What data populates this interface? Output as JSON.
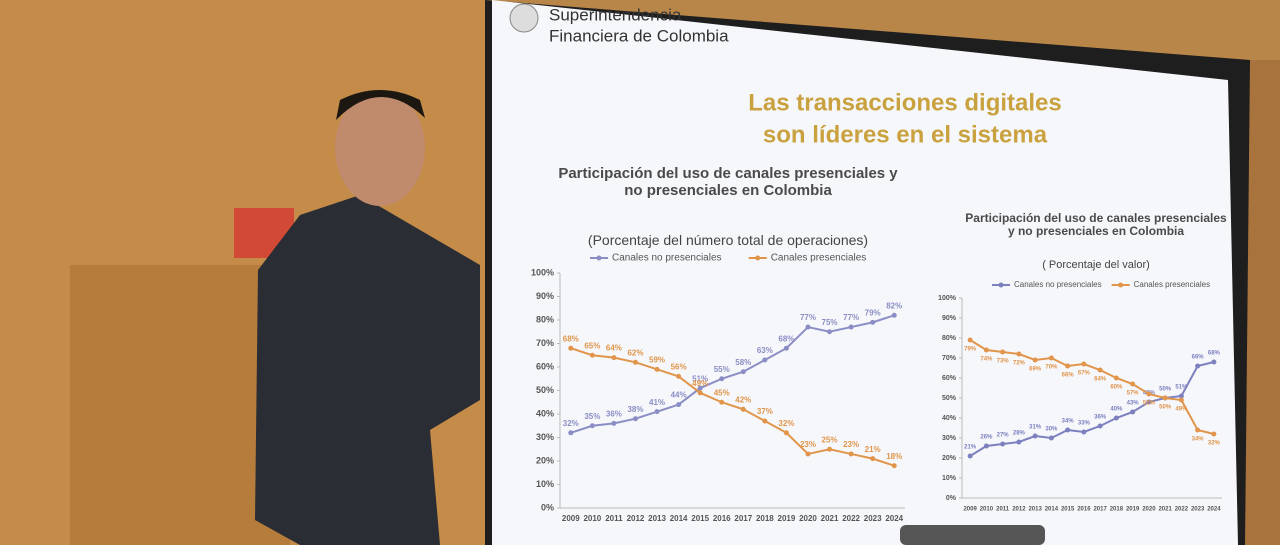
{
  "slide": {
    "logo_line_1": "Superintendencia",
    "logo_line_2": "Financiera de Colombia",
    "heading_line_1": "Las transacciones digitales",
    "heading_line_2": "son líderes en el sistema"
  },
  "chart_data": [
    {
      "type": "line",
      "title": "Participación del uso de canales presenciales y no presenciales en Colombia",
      "subtitle": "(Porcentaje del número total de operaciones)",
      "categories": [
        "2009",
        "2010",
        "2011",
        "2012",
        "2013",
        "2014",
        "2015",
        "2016",
        "2017",
        "2018",
        "2019",
        "2020",
        "2021",
        "2022",
        "2023",
        "2024"
      ],
      "series": [
        {
          "name": "Canales no presenciales",
          "color": "#8b8ec4",
          "values": [
            32,
            35,
            36,
            38,
            41,
            44,
            51,
            55,
            58,
            63,
            68,
            77,
            75,
            77,
            79,
            82
          ],
          "value_labels": [
            "32%",
            "35%",
            "36%",
            "38%",
            "41%",
            "44%",
            "51%",
            "55%",
            "58%",
            "63%",
            "68%",
            "77%",
            "75%",
            "77%",
            "79%",
            "82%"
          ]
        },
        {
          "name": "Canales presenciales",
          "color": "#e0954a",
          "values": [
            68,
            65,
            64,
            62,
            59,
            56,
            49,
            45,
            42,
            37,
            32,
            23,
            25,
            23,
            21,
            18
          ],
          "value_labels": [
            "68%",
            "65%",
            "64%",
            "62%",
            "59%",
            "56%",
            "49%",
            "45%",
            "42%",
            "37%",
            "32%",
            "23%",
            "25%",
            "23%",
            "21%",
            "18%"
          ]
        }
      ],
      "ylim": [
        0,
        100
      ],
      "yticks": [
        {
          "value": 0,
          "label": "0%"
        },
        {
          "value": 10,
          "label": "10%"
        },
        {
          "value": 20,
          "label": "20%"
        },
        {
          "value": 30,
          "label": "30%"
        },
        {
          "value": 40,
          "label": "40%"
        },
        {
          "value": 50,
          "label": "50%"
        },
        {
          "value": 60,
          "label": "60%"
        },
        {
          "value": 70,
          "label": "70%"
        },
        {
          "value": 80,
          "label": "80%"
        },
        {
          "value": 90,
          "label": "90%"
        },
        {
          "value": 100,
          "label": "100%"
        }
      ],
      "legend": "top"
    },
    {
      "type": "line",
      "title": "Participación del uso de canales presenciales y no presenciales en Colombia",
      "subtitle": "( Porcentaje del valor)",
      "categories": [
        "2009",
        "2010",
        "2011",
        "2012",
        "2013",
        "2014",
        "2015",
        "2016",
        "2017",
        "2018",
        "2019",
        "2020",
        "2021",
        "2022",
        "2023",
        "2024"
      ],
      "series": [
        {
          "name": "Canales no presenciales",
          "color": "#7c80bf",
          "values": [
            21,
            26,
            27,
            28,
            31,
            30,
            34,
            33,
            36,
            40,
            43,
            48,
            50,
            51,
            66,
            68
          ],
          "value_labels": [
            "21%",
            "26%",
            "27%",
            "28%",
            "31%",
            "30%",
            "34%",
            "33%",
            "36%",
            "40%",
            "43%",
            "48%",
            "50%",
            "51%",
            "66%",
            "68%"
          ]
        },
        {
          "name": "Canales presenciales",
          "color": "#e0954a",
          "values": [
            79,
            74,
            73,
            72,
            69,
            70,
            66,
            67,
            64,
            60,
            57,
            52,
            50,
            49,
            34,
            32
          ],
          "value_labels": [
            "79%",
            "74%",
            "73%",
            "72%",
            "69%",
            "70%",
            "66%",
            "67%",
            "64%",
            "60%",
            "57%",
            "52%",
            "50%",
            "49%",
            "34%",
            "32%"
          ]
        }
      ],
      "ylim": [
        0,
        100
      ],
      "yticks": [
        {
          "value": 0,
          "label": "0%"
        },
        {
          "value": 10,
          "label": "10%"
        },
        {
          "value": 20,
          "label": "20%"
        },
        {
          "value": 30,
          "label": "30%"
        },
        {
          "value": 40,
          "label": "40%"
        },
        {
          "value": 50,
          "label": "50%"
        },
        {
          "value": 60,
          "label": "60%"
        },
        {
          "value": 70,
          "label": "70%"
        },
        {
          "value": 80,
          "label": "80%"
        },
        {
          "value": 90,
          "label": "90%"
        },
        {
          "value": 100,
          "label": "100%"
        }
      ],
      "legend": "top"
    }
  ]
}
